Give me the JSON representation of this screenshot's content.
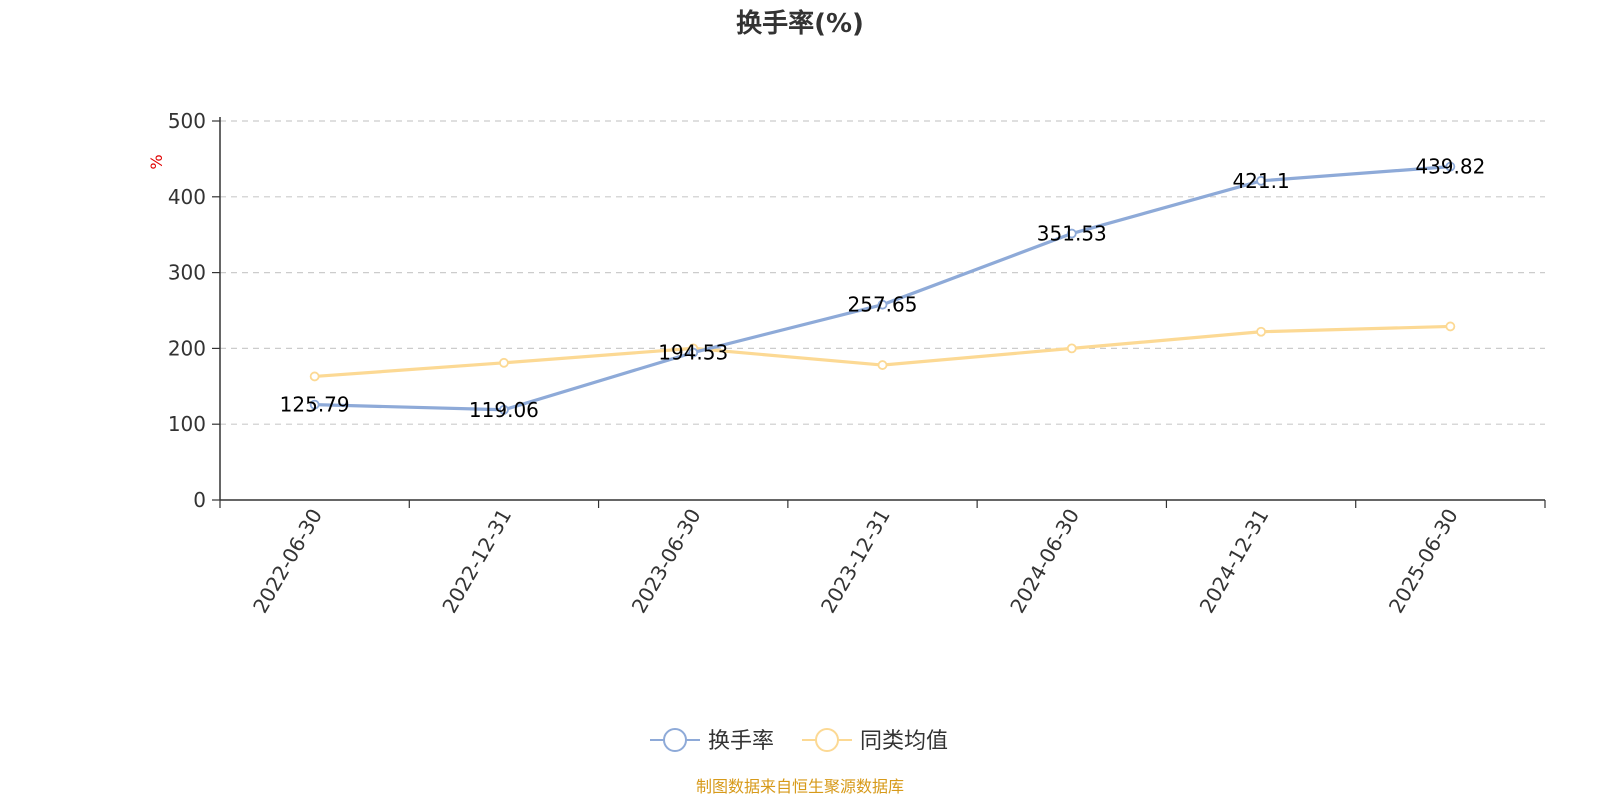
{
  "chart_data": {
    "type": "line",
    "title": "换手率(%)",
    "ylabel": "%",
    "xlabel": "",
    "categories": [
      "2022-06-30",
      "2022-12-31",
      "2023-06-30",
      "2023-12-31",
      "2024-06-30",
      "2024-12-31",
      "2025-06-30"
    ],
    "ylim": [
      0,
      500
    ],
    "yticks": [
      0,
      100,
      200,
      300,
      400,
      500
    ],
    "grid": true,
    "legend_position": "bottom-center",
    "series": [
      {
        "name": "换手率",
        "values": [
          125.79,
          119.06,
          194.53,
          257.65,
          351.53,
          421.1,
          439.82
        ],
        "color": "#8eaad8",
        "labels": [
          "125.79",
          "119.06",
          "194.53",
          "257.65",
          "351.53",
          "421.1",
          "439.82"
        ]
      },
      {
        "name": "同类均值",
        "values": [
          163,
          181,
          200,
          178,
          200,
          222,
          229
        ],
        "color": "#fcd994"
      }
    ]
  },
  "source_text": "制图数据来自恒生聚源数据库",
  "colors": {
    "axis": "#333333",
    "grid": "#cccccc",
    "ylabel": "#e00000",
    "source": "#d79a1a"
  }
}
